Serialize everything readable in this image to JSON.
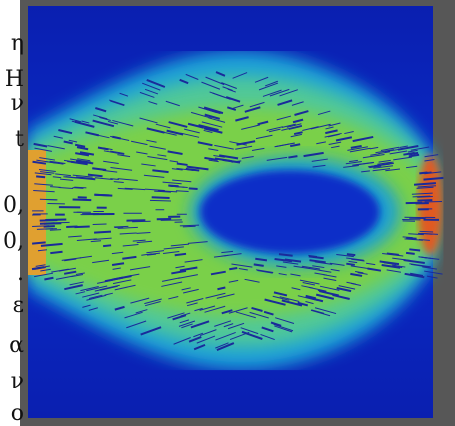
{
  "fragments": [
    "η",
    "H",
    "ν",
    "t",
    "0,",
    "0,",
    ".",
    "ε",
    "α",
    "ν",
    "o"
  ]
}
